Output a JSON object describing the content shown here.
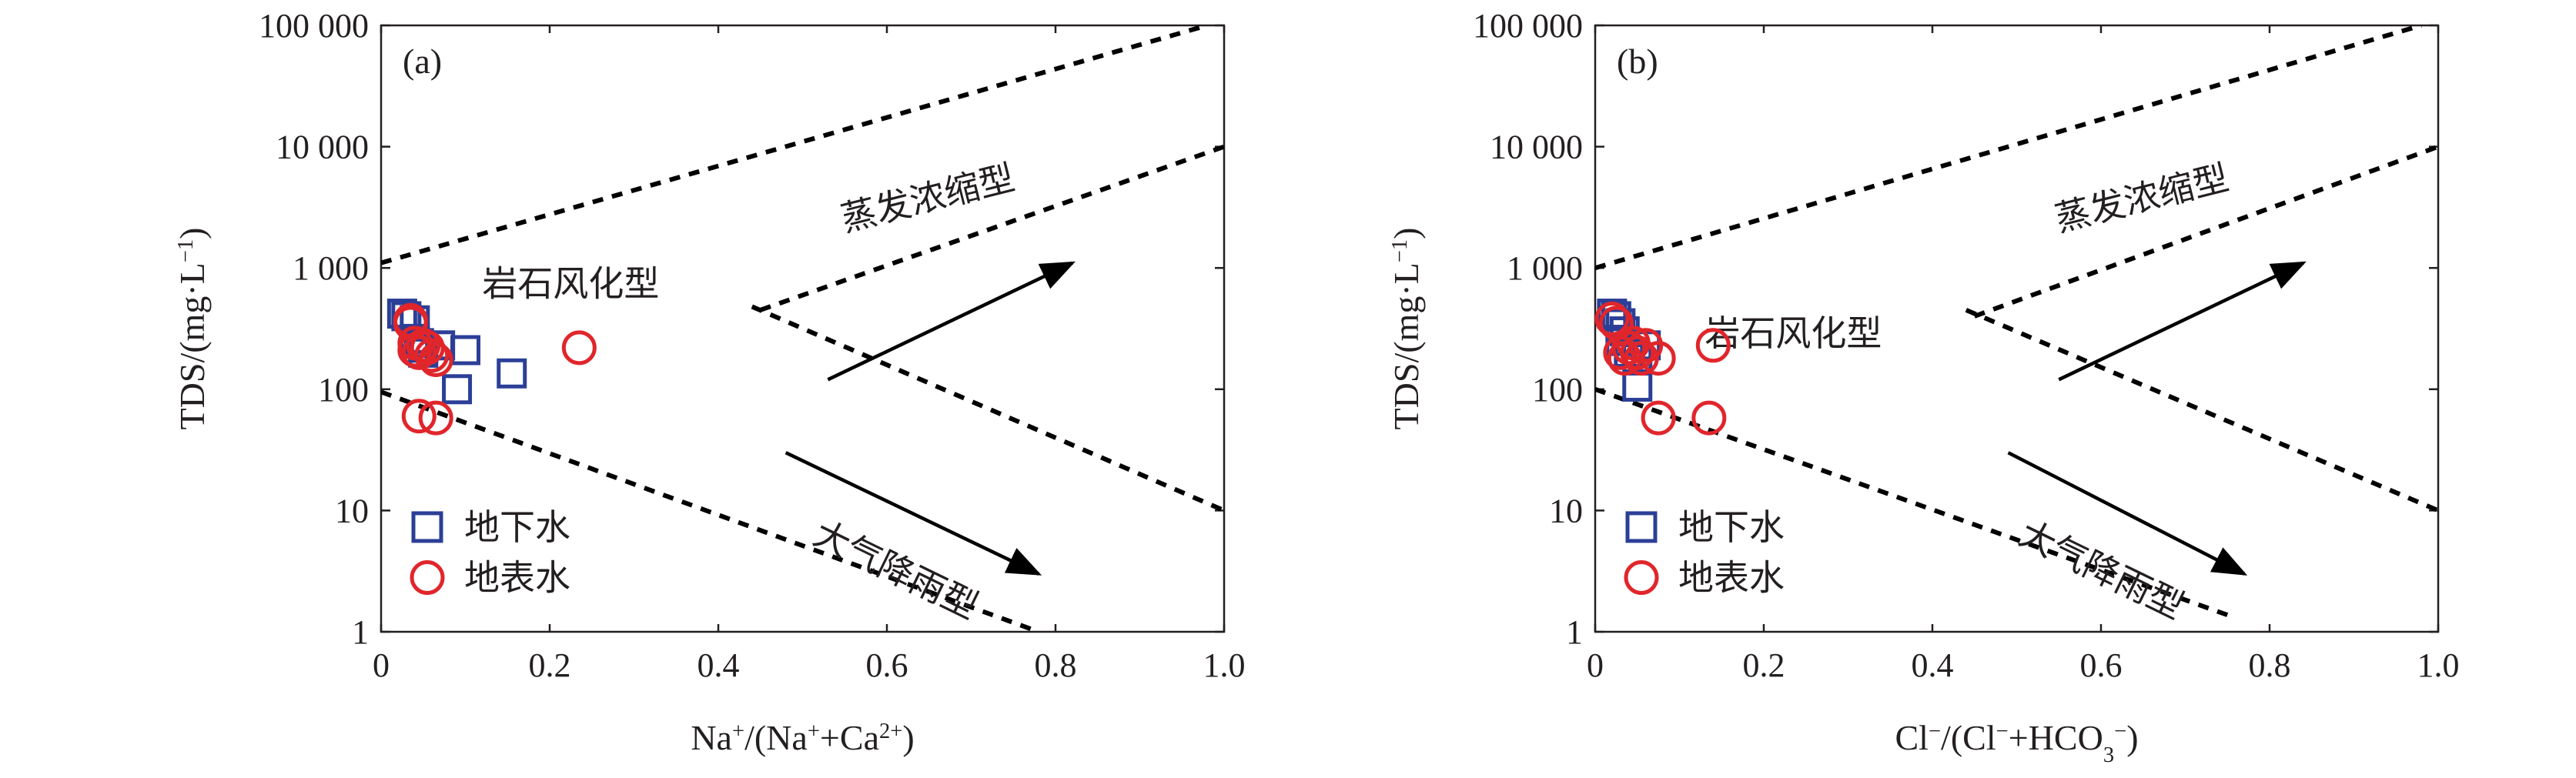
{
  "colors": {
    "ground": "#2b3f97",
    "surface": "#e0262b",
    "ink": "#231f20"
  },
  "chart_data": [
    {
      "type": "scatter",
      "panel": "(a)",
      "xlabel": "Na⁺/(Na⁺+Ca²⁺)",
      "ylabel": "TDS/(mg·L⁻¹)",
      "xlim": [
        0,
        1.0
      ],
      "ylim": [
        1,
        100000
      ],
      "yscale": "log",
      "xticks": [
        "0",
        "0.2",
        "0.4",
        "0.6",
        "0.8",
        "1.0"
      ],
      "yticks": [
        "1",
        "10",
        "100",
        "1 000",
        "10 000",
        "100 000"
      ],
      "boundaries": {
        "upper": [
          [
            0,
            1100
          ],
          [
            0.98,
            100000
          ]
        ],
        "mid": [
          [
            0.45,
            450
          ],
          [
            1.0,
            10000
          ]
        ],
        "lower": [
          [
            0,
            95
          ],
          [
            0.78,
            1
          ]
        ],
        "diag": [
          [
            0.44,
            480
          ],
          [
            1.0,
            10
          ]
        ]
      },
      "regions": [
        {
          "text": "蒸发浓缩型",
          "x": 0.55,
          "y": 2000,
          "angle": -14
        },
        {
          "text": "岩石风化型",
          "x": 0.12,
          "y": 590,
          "angle": 0
        },
        {
          "text": "大气降雨型",
          "x": 0.51,
          "y": 5.5,
          "angle": 26
        }
      ],
      "arrows": [
        {
          "from": [
            0.53,
            120
          ],
          "to": [
            0.82,
            1100
          ]
        },
        {
          "from": [
            0.48,
            30
          ],
          "to": [
            0.78,
            3
          ]
        }
      ],
      "series": [
        {
          "name": "地下水",
          "marker": "square",
          "x": [
            0.025,
            0.03,
            0.04,
            0.04,
            0.045,
            0.05,
            0.05,
            0.07,
            0.09,
            0.1,
            0.155
          ],
          "y": [
            420,
            400,
            370,
            260,
            240,
            220,
            200,
            230,
            100,
            210,
            135
          ]
        },
        {
          "name": "地表水",
          "marker": "circle",
          "x": [
            0.035,
            0.035,
            0.04,
            0.04,
            0.045,
            0.05,
            0.055,
            0.06,
            0.065,
            0.045,
            0.065,
            0.235
          ],
          "y": [
            370,
            350,
            240,
            210,
            200,
            230,
            220,
            190,
            175,
            60,
            58,
            220
          ]
        }
      ]
    },
    {
      "type": "scatter",
      "panel": "(b)",
      "xlabel": "Cl⁻/(Cl⁻+HCO₃⁻)",
      "ylabel": "TDS/(mg·L⁻¹)",
      "xlim": [
        0,
        1.0
      ],
      "ylim": [
        1,
        100000
      ],
      "yscale": "log",
      "xticks": [
        "0",
        "0.2",
        "0.4",
        "0.6",
        "0.8",
        "1.0"
      ],
      "yticks": [
        "1",
        "10",
        "100",
        "1 000",
        "10 000",
        "100 000"
      ],
      "boundaries": {
        "upper": [
          [
            0,
            1000
          ],
          [
            0.98,
            100000
          ]
        ],
        "mid": [
          [
            0.45,
            400
          ],
          [
            1.0,
            10000
          ]
        ],
        "lower": [
          [
            0,
            100
          ],
          [
            0.76,
            1.3
          ]
        ],
        "diag": [
          [
            0.44,
            450
          ],
          [
            1.0,
            10
          ]
        ]
      },
      "regions": [
        {
          "text": "蒸发浓缩型",
          "x": 0.55,
          "y": 2000,
          "angle": -14
        },
        {
          "text": "岩石风化型",
          "x": 0.13,
          "y": 230,
          "angle": 0
        },
        {
          "text": "大气降雨型",
          "x": 0.5,
          "y": 5.5,
          "angle": 26
        }
      ],
      "arrows": [
        {
          "from": [
            0.55,
            120
          ],
          "to": [
            0.84,
            1100
          ]
        },
        {
          "from": [
            0.49,
            30
          ],
          "to": [
            0.77,
            3
          ]
        }
      ],
      "series": [
        {
          "name": "地下水",
          "marker": "square",
          "x": [
            0.02,
            0.025,
            0.03,
            0.035,
            0.03,
            0.04,
            0.05,
            0.06,
            0.05
          ],
          "y": [
            420,
            400,
            350,
            300,
            250,
            200,
            180,
            230,
            105
          ]
        },
        {
          "name": "地表水",
          "marker": "circle",
          "x": [
            0.02,
            0.025,
            0.03,
            0.035,
            0.04,
            0.045,
            0.05,
            0.055,
            0.06,
            0.075,
            0.075,
            0.14,
            0.135
          ],
          "y": [
            380,
            350,
            200,
            180,
            220,
            240,
            200,
            180,
            230,
            180,
            58,
            230,
            58
          ]
        }
      ]
    }
  ]
}
